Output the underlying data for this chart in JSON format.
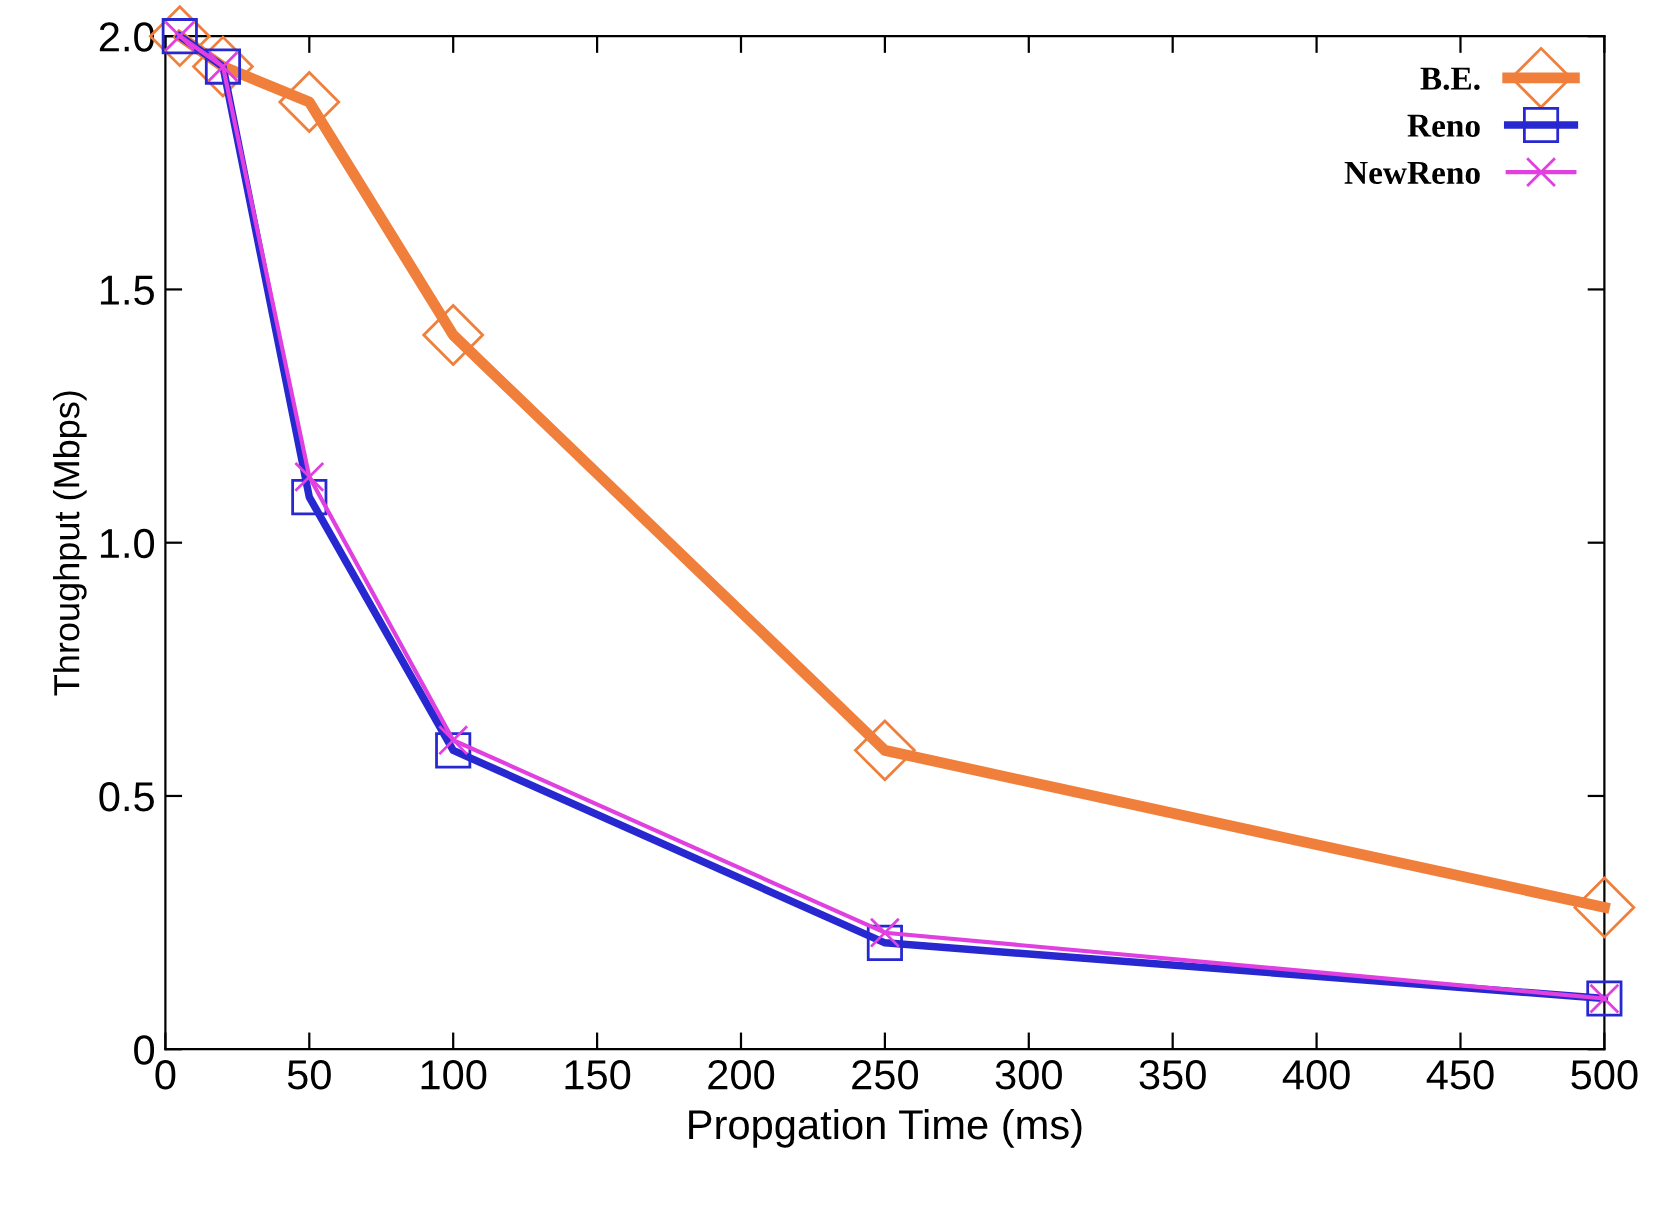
{
  "chart_data": {
    "type": "line",
    "xlabel": "Propgation Time (ms)",
    "ylabel": "Throughput (Mbps)",
    "xlim": [
      0,
      500
    ],
    "xticks": [
      0,
      50,
      100,
      150,
      200,
      250,
      300,
      350,
      400,
      450,
      500
    ],
    "ylim": [
      0,
      2.0
    ],
    "yticks": [
      {
        "value": 0,
        "label": "0"
      },
      {
        "value": 0.5,
        "label": "0.5"
      },
      {
        "value": 1.0,
        "label": "1.0"
      },
      {
        "value": 1.5,
        "label": "1.5"
      },
      {
        "value": 2.0,
        "label": "2.0"
      }
    ],
    "x": [
      5,
      20,
      50,
      100,
      250,
      500
    ],
    "series": [
      {
        "name": "B.E.",
        "color": "#f07f3c",
        "marker": "diamond",
        "values": [
          2.0,
          1.94,
          1.87,
          1.41,
          0.59,
          0.28
        ]
      },
      {
        "name": "Reno",
        "color": "#2828d0",
        "marker": "square",
        "values": [
          2.0,
          1.94,
          1.09,
          0.59,
          0.21,
          0.1
        ]
      },
      {
        "name": "NewReno",
        "color": "#e040e0",
        "marker": "cross",
        "values": [
          2.0,
          1.94,
          1.13,
          0.61,
          0.23,
          0.1
        ]
      }
    ],
    "legend": "top right",
    "grid": false,
    "line_style": "solid"
  }
}
